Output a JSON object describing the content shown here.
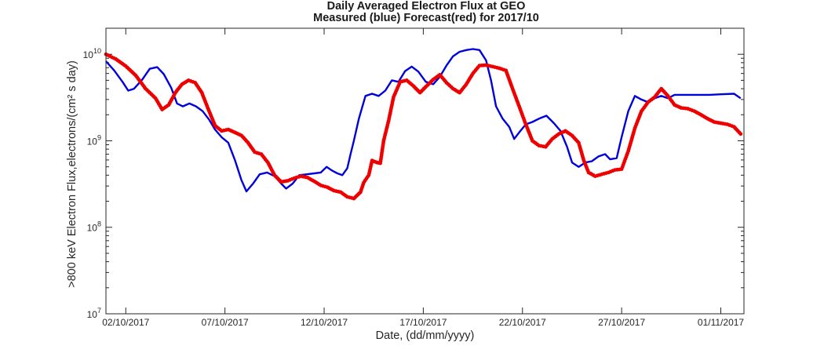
{
  "chart_data": {
    "type": "line",
    "title": "Daily Averaged Electron Flux at GEO",
    "subtitle": "Measured (blue) Forecast(red) for 2017/10",
    "xlabel": "Date, (dd/mm/yyyy)",
    "ylabel": ">800 keV Electron Flux,electrons/(cm² s day)",
    "y_scale": "log",
    "xlim": [
      "2017-10-01T00:00",
      "2017-11-02T04:00"
    ],
    "ylim": [
      10000000,
      20000000000
    ],
    "x_ticks": [
      {
        "label": "02/10/2017",
        "date": "2017-10-02"
      },
      {
        "label": "07/10/2017",
        "date": "2017-10-07"
      },
      {
        "label": "12/10/2017",
        "date": "2017-10-12"
      },
      {
        "label": "17/10/2017",
        "date": "2017-10-17"
      },
      {
        "label": "22/10/2017",
        "date": "2017-10-22"
      },
      {
        "label": "27/10/2017",
        "date": "2017-10-27"
      },
      {
        "label": "01/11/2017",
        "date": "2017-11-01"
      }
    ],
    "y_ticks": [
      {
        "base": "10",
        "exp": "7",
        "value": 10000000
      },
      {
        "base": "10",
        "exp": "8",
        "value": 100000000
      },
      {
        "base": "10",
        "exp": "9",
        "value": 1000000000
      },
      {
        "base": "10",
        "exp": "10",
        "value": 10000000000
      }
    ],
    "grid": false,
    "series": [
      {
        "label": "Measured",
        "color": "#0000dd",
        "style": "line",
        "points": [
          [
            "2017-10-01T00:00",
            8300000000.0
          ],
          [
            "2017-10-01T10:00",
            6500000000.0
          ],
          [
            "2017-10-01T20:00",
            4800000000.0
          ],
          [
            "2017-10-02T03:00",
            3800000000.0
          ],
          [
            "2017-10-02T10:00",
            4000000000.0
          ],
          [
            "2017-10-02T20:00",
            5100000000.0
          ],
          [
            "2017-10-03T05:00",
            6800000000.0
          ],
          [
            "2017-10-03T14:00",
            7100000000.0
          ],
          [
            "2017-10-03T22:00",
            5900000000.0
          ],
          [
            "2017-10-04T07:00",
            4100000000.0
          ],
          [
            "2017-10-04T14:00",
            2700000000.0
          ],
          [
            "2017-10-04T21:00",
            2500000000.0
          ],
          [
            "2017-10-05T05:00",
            2700000000.0
          ],
          [
            "2017-10-05T13:00",
            2500000000.0
          ],
          [
            "2017-10-05T21:00",
            2200000000.0
          ],
          [
            "2017-10-06T05:00",
            1750000000.0
          ],
          [
            "2017-10-06T12:00",
            1350000000.0
          ],
          [
            "2017-10-06T20:00",
            1100000000.0
          ],
          [
            "2017-10-07T04:00",
            950000000.0
          ],
          [
            "2017-10-07T12:00",
            600000000.0
          ],
          [
            "2017-10-07T20:00",
            350000000.0
          ],
          [
            "2017-10-08T02:00",
            260000000.0
          ],
          [
            "2017-10-08T10:00",
            320000000.0
          ],
          [
            "2017-10-08T18:00",
            410000000.0
          ],
          [
            "2017-10-09T03:00",
            430000000.0
          ],
          [
            "2017-10-09T12:00",
            390000000.0
          ],
          [
            "2017-10-09T20:00",
            320000000.0
          ],
          [
            "2017-10-10T02:00",
            280000000.0
          ],
          [
            "2017-10-10T10:00",
            320000000.0
          ],
          [
            "2017-10-10T18:00",
            400000000.0
          ],
          [
            "2017-10-11T03:00",
            410000000.0
          ],
          [
            "2017-10-11T12:00",
            420000000.0
          ],
          [
            "2017-10-11T20:00",
            430000000.0
          ],
          [
            "2017-10-12T03:00",
            500000000.0
          ],
          [
            "2017-10-12T10:00",
            450000000.0
          ],
          [
            "2017-10-12T16:00",
            420000000.0
          ],
          [
            "2017-10-12T22:00",
            400000000.0
          ],
          [
            "2017-10-13T04:00",
            480000000.0
          ],
          [
            "2017-10-13T08:00",
            700000000.0
          ],
          [
            "2017-10-13T12:00",
            1000000000.0
          ],
          [
            "2017-10-13T18:00",
            1800000000.0
          ],
          [
            "2017-10-14T02:00",
            3300000000.0
          ],
          [
            "2017-10-14T10:00",
            3500000000.0
          ],
          [
            "2017-10-14T18:00",
            3300000000.0
          ],
          [
            "2017-10-15T02:00",
            3800000000.0
          ],
          [
            "2017-10-15T10:00",
            5000000000.0
          ],
          [
            "2017-10-15T18:00",
            4800000000.0
          ],
          [
            "2017-10-16T02:00",
            6400000000.0
          ],
          [
            "2017-10-16T10:00",
            7200000000.0
          ],
          [
            "2017-10-16T18:00",
            6300000000.0
          ],
          [
            "2017-10-17T03:00",
            4800000000.0
          ],
          [
            "2017-10-17T12:00",
            4500000000.0
          ],
          [
            "2017-10-17T20:00",
            5500000000.0
          ],
          [
            "2017-10-18T04:00",
            7400000000.0
          ],
          [
            "2017-10-18T12:00",
            9500000000.0
          ],
          [
            "2017-10-18T20:00",
            10700000000.0
          ],
          [
            "2017-10-19T04:00",
            11200000000.0
          ],
          [
            "2017-10-19T12:00",
            11500000000.0
          ],
          [
            "2017-10-19T20:00",
            11200000000.0
          ],
          [
            "2017-10-20T04:00",
            8500000000.0
          ],
          [
            "2017-10-20T10:00",
            5000000000.0
          ],
          [
            "2017-10-20T16:00",
            2500000000.0
          ],
          [
            "2017-10-21T00:00",
            1800000000.0
          ],
          [
            "2017-10-21T08:00",
            1450000000.0
          ],
          [
            "2017-10-21T14:00",
            1050000000.0
          ],
          [
            "2017-10-21T20:00",
            1250000000.0
          ],
          [
            "2017-10-22T04:00",
            1550000000.0
          ],
          [
            "2017-10-22T12:00",
            1650000000.0
          ],
          [
            "2017-10-22T20:00",
            1800000000.0
          ],
          [
            "2017-10-23T05:00",
            1950000000.0
          ],
          [
            "2017-10-23T14:00",
            1600000000.0
          ],
          [
            "2017-10-23T22:00",
            1300000000.0
          ],
          [
            "2017-10-24T06:00",
            850000000.0
          ],
          [
            "2017-10-24T12:00",
            560000000.0
          ],
          [
            "2017-10-24T20:00",
            500000000.0
          ],
          [
            "2017-10-25T04:00",
            560000000.0
          ],
          [
            "2017-10-25T12:00",
            580000000.0
          ],
          [
            "2017-10-25T20:00",
            660000000.0
          ],
          [
            "2017-10-26T04:00",
            700000000.0
          ],
          [
            "2017-10-26T10:00",
            610000000.0
          ],
          [
            "2017-10-26T18:00",
            630000000.0
          ],
          [
            "2017-10-27T00:00",
            1100000000.0
          ],
          [
            "2017-10-27T08:00",
            2200000000.0
          ],
          [
            "2017-10-27T16:00",
            3300000000.0
          ],
          [
            "2017-10-28T00:00",
            3000000000.0
          ],
          [
            "2017-10-28T08:00",
            2800000000.0
          ],
          [
            "2017-10-28T16:00",
            3100000000.0
          ],
          [
            "2017-10-29T00:00",
            3300000000.0
          ],
          [
            "2017-10-29T08:00",
            3100000000.0
          ],
          [
            "2017-10-29T16:00",
            3400000000.0
          ],
          [
            "2017-10-30T06:00",
            3400000000.0
          ],
          [
            "2017-10-30T20:00",
            3400000000.0
          ],
          [
            "2017-10-31T10:00",
            3400000000.0
          ],
          [
            "2017-11-01T00:00",
            3450000000.0
          ],
          [
            "2017-11-01T16:00",
            3500000000.0
          ],
          [
            "2017-11-02T00:00",
            3100000000.0
          ]
        ]
      },
      {
        "label": "Forecast",
        "color": "#ee0000",
        "style": "dots",
        "points": [
          [
            "2017-10-01T00:00",
            10000000000.0
          ],
          [
            "2017-10-01T12:00",
            8800000000.0
          ],
          [
            "2017-10-02T00:00",
            7300000000.0
          ],
          [
            "2017-10-02T12:00",
            5700000000.0
          ],
          [
            "2017-10-03T00:00",
            4000000000.0
          ],
          [
            "2017-10-03T12:00",
            3100000000.0
          ],
          [
            "2017-10-03T20:00",
            2300000000.0
          ],
          [
            "2017-10-04T04:00",
            2600000000.0
          ],
          [
            "2017-10-04T12:00",
            3600000000.0
          ],
          [
            "2017-10-04T20:00",
            4500000000.0
          ],
          [
            "2017-10-05T04:00",
            5000000000.0
          ],
          [
            "2017-10-05T12:00",
            4700000000.0
          ],
          [
            "2017-10-05T20:00",
            3600000000.0
          ],
          [
            "2017-10-06T04:00",
            2300000000.0
          ],
          [
            "2017-10-06T12:00",
            1500000000.0
          ],
          [
            "2017-10-06T20:00",
            1300000000.0
          ],
          [
            "2017-10-07T04:00",
            1350000000.0
          ],
          [
            "2017-10-07T12:00",
            1250000000.0
          ],
          [
            "2017-10-07T20:00",
            1150000000.0
          ],
          [
            "2017-10-08T04:00",
            950000000.0
          ],
          [
            "2017-10-08T12:00",
            740000000.0
          ],
          [
            "2017-10-08T20:00",
            700000000.0
          ],
          [
            "2017-10-09T04:00",
            560000000.0
          ],
          [
            "2017-10-09T12:00",
            400000000.0
          ],
          [
            "2017-10-09T20:00",
            335000000.0
          ],
          [
            "2017-10-10T04:00",
            345000000.0
          ],
          [
            "2017-10-10T12:00",
            370000000.0
          ],
          [
            "2017-10-10T20:00",
            390000000.0
          ],
          [
            "2017-10-11T04:00",
            375000000.0
          ],
          [
            "2017-10-11T12:00",
            340000000.0
          ],
          [
            "2017-10-11T20:00",
            305000000.0
          ],
          [
            "2017-10-12T04:00",
            290000000.0
          ],
          [
            "2017-10-12T12:00",
            265000000.0
          ],
          [
            "2017-10-12T20:00",
            255000000.0
          ],
          [
            "2017-10-13T04:00",
            225000000.0
          ],
          [
            "2017-10-13T12:00",
            215000000.0
          ],
          [
            "2017-10-13T20:00",
            255000000.0
          ],
          [
            "2017-10-14T00:00",
            330000000.0
          ],
          [
            "2017-10-14T06:00",
            400000000.0
          ],
          [
            "2017-10-14T10:00",
            590000000.0
          ],
          [
            "2017-10-14T16:00",
            560000000.0
          ],
          [
            "2017-10-14T20:00",
            550000000.0
          ],
          [
            "2017-10-15T00:00",
            1000000000.0
          ],
          [
            "2017-10-15T06:00",
            1700000000.0
          ],
          [
            "2017-10-15T12:00",
            3200000000.0
          ],
          [
            "2017-10-15T20:00",
            4800000000.0
          ],
          [
            "2017-10-16T04:00",
            5000000000.0
          ],
          [
            "2017-10-16T12:00",
            4300000000.0
          ],
          [
            "2017-10-16T20:00",
            3600000000.0
          ],
          [
            "2017-10-17T04:00",
            4300000000.0
          ],
          [
            "2017-10-17T12:00",
            5100000000.0
          ],
          [
            "2017-10-17T20:00",
            5800000000.0
          ],
          [
            "2017-10-18T04:00",
            4700000000.0
          ],
          [
            "2017-10-18T12:00",
            4000000000.0
          ],
          [
            "2017-10-18T20:00",
            3600000000.0
          ],
          [
            "2017-10-19T04:00",
            4500000000.0
          ],
          [
            "2017-10-19T12:00",
            6000000000.0
          ],
          [
            "2017-10-19T20:00",
            7400000000.0
          ],
          [
            "2017-10-20T04:00",
            7500000000.0
          ],
          [
            "2017-10-20T12:00",
            7200000000.0
          ],
          [
            "2017-10-20T20:00",
            6900000000.0
          ],
          [
            "2017-10-21T04:00",
            6500000000.0
          ],
          [
            "2017-10-21T12:00",
            4000000000.0
          ],
          [
            "2017-10-21T20:00",
            2500000000.0
          ],
          [
            "2017-10-22T04:00",
            1550000000.0
          ],
          [
            "2017-10-22T12:00",
            1000000000.0
          ],
          [
            "2017-10-22T20:00",
            880000000.0
          ],
          [
            "2017-10-23T04:00",
            850000000.0
          ],
          [
            "2017-10-23T12:00",
            1050000000.0
          ],
          [
            "2017-10-23T20:00",
            1200000000.0
          ],
          [
            "2017-10-24T04:00",
            1300000000.0
          ],
          [
            "2017-10-24T12:00",
            1150000000.0
          ],
          [
            "2017-10-24T20:00",
            950000000.0
          ],
          [
            "2017-10-25T02:00",
            600000000.0
          ],
          [
            "2017-10-25T08:00",
            430000000.0
          ],
          [
            "2017-10-25T16:00",
            390000000.0
          ],
          [
            "2017-10-26T00:00",
            410000000.0
          ],
          [
            "2017-10-26T08:00",
            430000000.0
          ],
          [
            "2017-10-26T16:00",
            460000000.0
          ],
          [
            "2017-10-27T00:00",
            470000000.0
          ],
          [
            "2017-10-27T08:00",
            760000000.0
          ],
          [
            "2017-10-27T16:00",
            1400000000.0
          ],
          [
            "2017-10-28T00:00",
            2200000000.0
          ],
          [
            "2017-10-28T08:00",
            2800000000.0
          ],
          [
            "2017-10-28T16:00",
            3200000000.0
          ],
          [
            "2017-10-29T00:00",
            4000000000.0
          ],
          [
            "2017-10-29T08:00",
            3300000000.0
          ],
          [
            "2017-10-29T16:00",
            2600000000.0
          ],
          [
            "2017-10-30T00:00",
            2400000000.0
          ],
          [
            "2017-10-30T08:00",
            2350000000.0
          ],
          [
            "2017-10-30T16:00",
            2200000000.0
          ],
          [
            "2017-10-31T00:00",
            2000000000.0
          ],
          [
            "2017-10-31T08:00",
            1800000000.0
          ],
          [
            "2017-10-31T16:00",
            1650000000.0
          ],
          [
            "2017-11-01T00:00",
            1600000000.0
          ],
          [
            "2017-11-01T08:00",
            1550000000.0
          ],
          [
            "2017-11-01T16:00",
            1450000000.0
          ],
          [
            "2017-11-02T00:00",
            1200000000.0
          ]
        ]
      }
    ]
  }
}
